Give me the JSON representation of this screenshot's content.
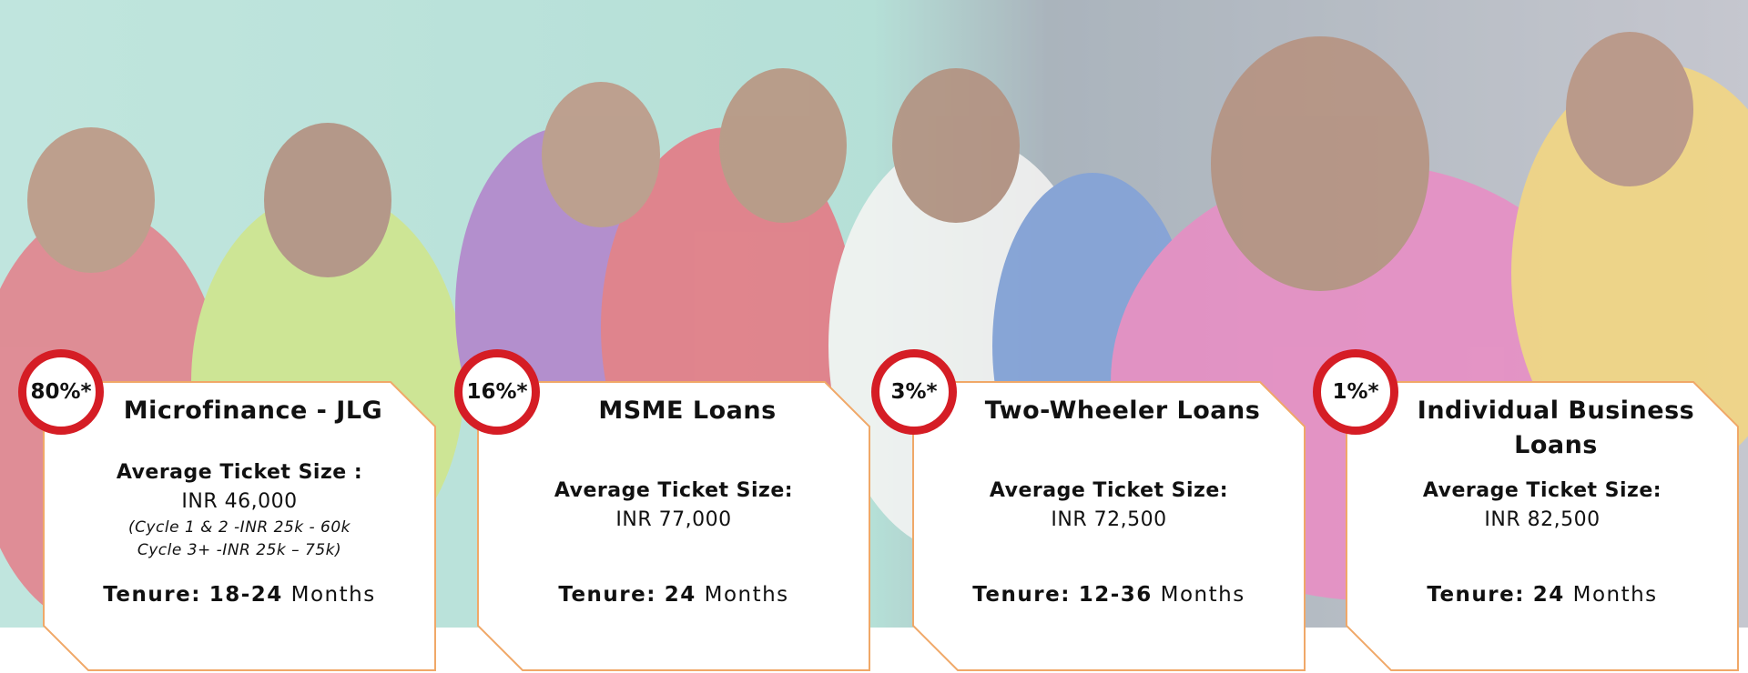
{
  "cards": [
    {
      "share": "80%*",
      "title": "Microfinance - JLG",
      "ticket_label": "Average Ticket Size :",
      "ticket_value": "INR 46,000",
      "notes": [
        "(Cycle 1 & 2 -INR 25k - 60k",
        "Cycle 3+ -INR 25k – 75k)"
      ],
      "tenure_label": "Tenure:",
      "tenure_value": "18-24",
      "tenure_unit": "Months"
    },
    {
      "share": "16%*",
      "title": "MSME Loans",
      "ticket_label": "Average Ticket Size:",
      "ticket_value": "INR 77,000",
      "tenure_label": "Tenure:",
      "tenure_value": "24",
      "tenure_unit": "Months"
    },
    {
      "share": "3%*",
      "title": "Two-Wheeler Loans",
      "ticket_label": "Average Ticket Size:",
      "ticket_value": "INR 72,500",
      "tenure_label": "Tenure:",
      "tenure_value": "12-36",
      "tenure_unit": "Months"
    },
    {
      "share": "1%*",
      "title": "Individual Business Loans",
      "ticket_label": "Average Ticket Size:",
      "ticket_value": "INR 82,500",
      "tenure_label": "Tenure:",
      "tenure_value": "24",
      "tenure_unit": "Months"
    }
  ]
}
